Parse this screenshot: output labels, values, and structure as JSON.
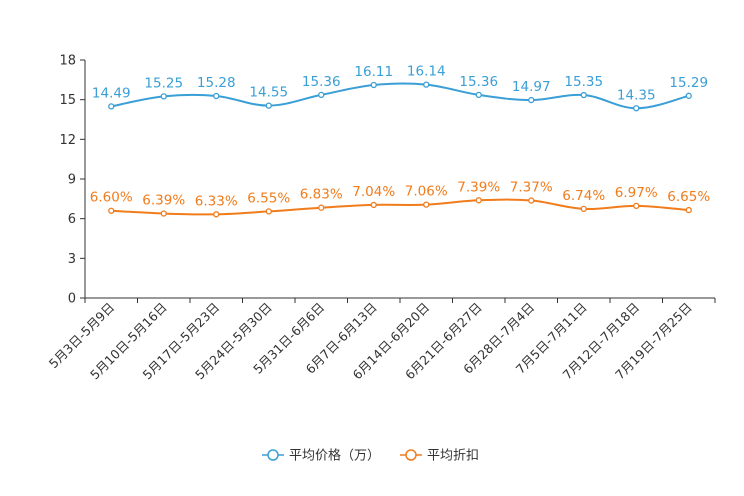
{
  "chart_data": {
    "type": "line",
    "title": "",
    "xlabel": "",
    "ylabel": "",
    "ylim": [
      0,
      18
    ],
    "yticks": [
      "0",
      "3",
      "6",
      "9",
      "12",
      "15",
      "18"
    ],
    "categories": [
      "5月3日-5月9日",
      "5月10日-5月16日",
      "5月17日-5月23日",
      "5月24日-5月30日",
      "5月31日-6月6日",
      "6月7日-6月13日",
      "6月14日-6月20日",
      "6月21日-6月27日",
      "6月28日-7月4日",
      "7月5日-7月11日",
      "7月12日-7月18日",
      "7月19日-7月25日"
    ],
    "series": [
      {
        "name": "平均价格（万）",
        "color": "#3a9fd6",
        "values": [
          14.49,
          15.25,
          15.28,
          14.55,
          15.36,
          16.11,
          16.14,
          15.36,
          14.97,
          15.35,
          14.35,
          15.29
        ],
        "labels": [
          "14.49",
          "15.25",
          "15.28",
          "14.55",
          "15.36",
          "16.11",
          "16.14",
          "15.36",
          "14.97",
          "15.35",
          "14.35",
          "15.29"
        ]
      },
      {
        "name": "平均折扣",
        "color": "#f07c1c",
        "values": [
          6.6,
          6.39,
          6.33,
          6.55,
          6.83,
          7.04,
          7.06,
          7.39,
          7.37,
          6.74,
          6.97,
          6.65
        ],
        "labels": [
          "6.60%",
          "6.39%",
          "6.33%",
          "6.55%",
          "6.83%",
          "7.04%",
          "7.06%",
          "7.39%",
          "7.37%",
          "6.74%",
          "6.97%",
          "6.65%"
        ]
      }
    ],
    "legend": "bottom-center"
  }
}
